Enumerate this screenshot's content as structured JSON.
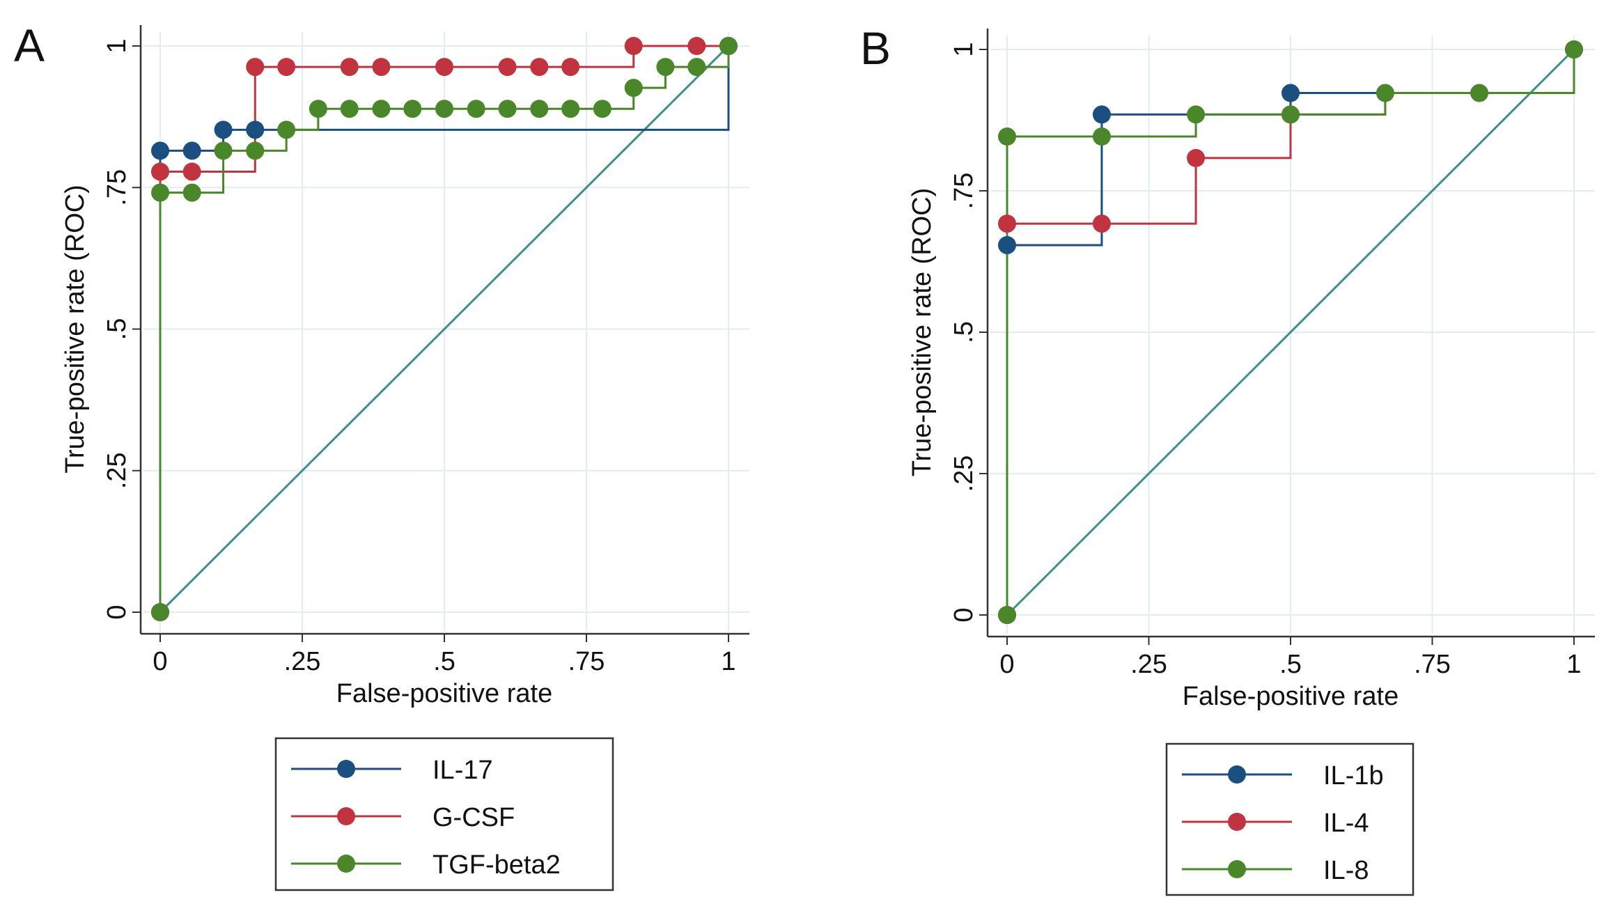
{
  "colors": {
    "blue": "#1a4f7f",
    "red": "#c0333f",
    "green": "#4a872a",
    "diag": "#3d8f89",
    "grid": "#e3ecf0",
    "axis": "#333333"
  },
  "chart_data": [
    {
      "type": "line",
      "panel_label": "A",
      "xlabel": "False-positive rate",
      "ylabel": "True-positive rate (ROC)",
      "xlim": [
        0,
        1
      ],
      "ylim": [
        0,
        1
      ],
      "xticks": [
        {
          "v": 0,
          "label": "0"
        },
        {
          "v": 0.25,
          "label": ".25"
        },
        {
          "v": 0.5,
          "label": ".5"
        },
        {
          "v": 0.75,
          "label": ".75"
        },
        {
          "v": 1,
          "label": "1"
        }
      ],
      "yticks": [
        {
          "v": 0,
          "label": "0"
        },
        {
          "v": 0.25,
          "label": ".25"
        },
        {
          "v": 0.5,
          "label": ".5"
        },
        {
          "v": 0.75,
          "label": ".75"
        },
        {
          "v": 1,
          "label": "1"
        }
      ],
      "grid": true,
      "legend_position": "bottom",
      "reference_line": [
        [
          0,
          0
        ],
        [
          1,
          1
        ]
      ],
      "series": [
        {
          "name": "IL-17",
          "color_key": "blue",
          "points": [
            [
              0,
              0
            ],
            [
              0,
              0.815
            ],
            [
              0.056,
              0.815
            ],
            [
              0.111,
              0.852
            ],
            [
              0.167,
              0.852
            ],
            [
              1,
              1
            ]
          ],
          "path": [
            [
              0,
              0
            ],
            [
              0,
              0.815
            ],
            [
              0.111,
              0.815
            ],
            [
              0.111,
              0.852
            ],
            [
              1,
              0.852
            ],
            [
              1,
              1
            ]
          ]
        },
        {
          "name": "G-CSF",
          "color_key": "red",
          "points": [
            [
              0,
              0
            ],
            [
              0,
              0.778
            ],
            [
              0.056,
              0.778
            ],
            [
              0.167,
              0.963
            ],
            [
              0.222,
              0.963
            ],
            [
              0.333,
              0.963
            ],
            [
              0.389,
              0.963
            ],
            [
              0.5,
              0.963
            ],
            [
              0.611,
              0.963
            ],
            [
              0.667,
              0.963
            ],
            [
              0.722,
              0.963
            ],
            [
              0.833,
              1
            ],
            [
              0.944,
              1
            ],
            [
              1,
              1
            ]
          ],
          "path": [
            [
              0,
              0
            ],
            [
              0,
              0.778
            ],
            [
              0.111,
              0.778
            ],
            [
              0.167,
              0.778
            ],
            [
              0.167,
              0.963
            ],
            [
              0.833,
              0.963
            ],
            [
              0.833,
              1
            ],
            [
              1,
              1
            ]
          ]
        },
        {
          "name": "TGF-beta2",
          "color_key": "green",
          "points": [
            [
              0,
              0
            ],
            [
              0,
              0.741
            ],
            [
              0.056,
              0.741
            ],
            [
              0.111,
              0.815
            ],
            [
              0.167,
              0.815
            ],
            [
              0.222,
              0.852
            ],
            [
              0.278,
              0.889
            ],
            [
              0.333,
              0.889
            ],
            [
              0.389,
              0.889
            ],
            [
              0.444,
              0.889
            ],
            [
              0.5,
              0.889
            ],
            [
              0.556,
              0.889
            ],
            [
              0.611,
              0.889
            ],
            [
              0.667,
              0.889
            ],
            [
              0.722,
              0.889
            ],
            [
              0.778,
              0.889
            ],
            [
              0.833,
              0.926
            ],
            [
              0.889,
              0.963
            ],
            [
              0.944,
              0.963
            ],
            [
              1,
              1
            ]
          ],
          "path": [
            [
              0,
              0
            ],
            [
              0,
              0.741
            ],
            [
              0.111,
              0.741
            ],
            [
              0.111,
              0.815
            ],
            [
              0.222,
              0.815
            ],
            [
              0.222,
              0.852
            ],
            [
              0.278,
              0.852
            ],
            [
              0.278,
              0.889
            ],
            [
              0.833,
              0.889
            ],
            [
              0.833,
              0.926
            ],
            [
              0.889,
              0.926
            ],
            [
              0.889,
              0.963
            ],
            [
              1,
              0.963
            ],
            [
              1,
              1
            ]
          ]
        }
      ]
    },
    {
      "type": "line",
      "panel_label": "B",
      "xlabel": "False-positive rate",
      "ylabel": "True-positive rate (ROC)",
      "xlim": [
        0,
        1
      ],
      "ylim": [
        0,
        1
      ],
      "xticks": [
        {
          "v": 0,
          "label": "0"
        },
        {
          "v": 0.25,
          "label": ".25"
        },
        {
          "v": 0.5,
          "label": ".5"
        },
        {
          "v": 0.75,
          "label": ".75"
        },
        {
          "v": 1,
          "label": "1"
        }
      ],
      "yticks": [
        {
          "v": 0,
          "label": "0"
        },
        {
          "v": 0.25,
          "label": ".25"
        },
        {
          "v": 0.5,
          "label": ".5"
        },
        {
          "v": 0.75,
          "label": ".75"
        },
        {
          "v": 1,
          "label": "1"
        }
      ],
      "grid": true,
      "legend_position": "bottom",
      "reference_line": [
        [
          0,
          0
        ],
        [
          1,
          1
        ]
      ],
      "series": [
        {
          "name": "IL-1b",
          "color_key": "blue",
          "points": [
            [
              0,
              0
            ],
            [
              0,
              0.654
            ],
            [
              0.167,
              0.885
            ],
            [
              0.5,
              0.923
            ],
            [
              1,
              1
            ]
          ],
          "path": [
            [
              0,
              0
            ],
            [
              0,
              0.654
            ],
            [
              0.167,
              0.654
            ],
            [
              0.167,
              0.885
            ],
            [
              0.5,
              0.885
            ],
            [
              0.5,
              0.923
            ],
            [
              1,
              0.923
            ],
            [
              1,
              1
            ]
          ]
        },
        {
          "name": "IL-4",
          "color_key": "red",
          "points": [
            [
              0,
              0
            ],
            [
              0,
              0.692
            ],
            [
              0.167,
              0.692
            ],
            [
              0.333,
              0.808
            ],
            [
              0.5,
              0.885
            ],
            [
              1,
              1
            ]
          ],
          "path": [
            [
              0,
              0
            ],
            [
              0,
              0.692
            ],
            [
              0.333,
              0.692
            ],
            [
              0.333,
              0.808
            ],
            [
              0.5,
              0.808
            ],
            [
              0.5,
              0.885
            ],
            [
              0.667,
              0.885
            ],
            [
              0.667,
              0.923
            ],
            [
              1,
              0.923
            ],
            [
              1,
              1
            ]
          ]
        },
        {
          "name": "IL-8",
          "color_key": "green",
          "points": [
            [
              0,
              0
            ],
            [
              0,
              0.846
            ],
            [
              0.167,
              0.846
            ],
            [
              0.333,
              0.885
            ],
            [
              0.5,
              0.885
            ],
            [
              0.667,
              0.923
            ],
            [
              0.833,
              0.923
            ],
            [
              1,
              1
            ]
          ],
          "path": [
            [
              0,
              0
            ],
            [
              0,
              0.846
            ],
            [
              0.333,
              0.846
            ],
            [
              0.333,
              0.885
            ],
            [
              0.667,
              0.885
            ],
            [
              0.667,
              0.923
            ],
            [
              1,
              0.923
            ],
            [
              1,
              1
            ]
          ]
        }
      ]
    }
  ]
}
